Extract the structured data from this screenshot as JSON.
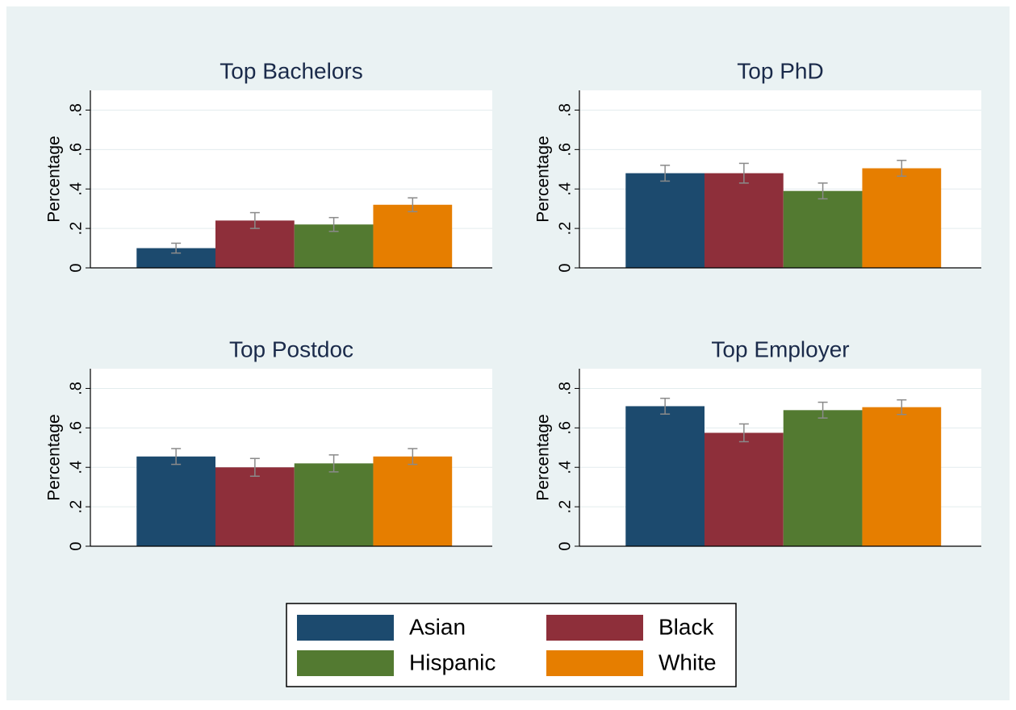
{
  "chart_data": [
    {
      "type": "bar",
      "title": "Top Bachelors",
      "y_label": "Percentage",
      "values": [
        0.1,
        0.24,
        0.22,
        0.32
      ],
      "errors": [
        0.025,
        0.04,
        0.035,
        0.035
      ],
      "ylim": [
        0,
        0.9
      ],
      "yticks": [
        0,
        {
          "value": 0.2,
          "label": ".2"
        },
        {
          "value": 0.4,
          "label": ".4"
        },
        {
          "value": 0.6,
          "label": ".6"
        },
        {
          "value": 0.8,
          "label": ".8"
        }
      ],
      "grid": true
    },
    {
      "type": "bar",
      "title": "Top PhD",
      "y_label": "Percentage",
      "values": [
        0.48,
        0.48,
        0.39,
        0.505
      ],
      "errors": [
        0.04,
        0.05,
        0.04,
        0.04
      ],
      "ylim": [
        0,
        0.9
      ],
      "yticks": [
        0,
        {
          "value": 0.2,
          "label": ".2"
        },
        {
          "value": 0.4,
          "label": ".4"
        },
        {
          "value": 0.6,
          "label": ".6"
        },
        {
          "value": 0.8,
          "label": ".8"
        }
      ],
      "grid": true
    },
    {
      "type": "bar",
      "title": "Top Postdoc",
      "y_label": "Percentage",
      "values": [
        0.455,
        0.4,
        0.42,
        0.455
      ],
      "errors": [
        0.04,
        0.045,
        0.043,
        0.04
      ],
      "ylim": [
        0,
        0.9
      ],
      "yticks": [
        0,
        {
          "value": 0.2,
          "label": ".2"
        },
        {
          "value": 0.4,
          "label": ".4"
        },
        {
          "value": 0.6,
          "label": ".6"
        },
        {
          "value": 0.8,
          "label": ".8"
        }
      ],
      "grid": true
    },
    {
      "type": "bar",
      "title": "Top Employer",
      "y_label": "Percentage",
      "values": [
        0.71,
        0.575,
        0.69,
        0.705
      ],
      "errors": [
        0.04,
        0.045,
        0.04,
        0.037
      ],
      "ylim": [
        0,
        0.9
      ],
      "yticks": [
        0,
        {
          "value": 0.2,
          "label": ".2"
        },
        {
          "value": 0.4,
          "label": ".4"
        },
        {
          "value": 0.6,
          "label": ".6"
        },
        {
          "value": 0.8,
          "label": ".8"
        }
      ],
      "grid": true
    }
  ],
  "legend": {
    "items": [
      {
        "name": "Asian",
        "color": "#1c4a6e"
      },
      {
        "name": "Black",
        "color": "#8e2f3a"
      },
      {
        "name": "Hispanic",
        "color": "#537a31"
      },
      {
        "name": "White",
        "color": "#e67e00"
      }
    ]
  }
}
